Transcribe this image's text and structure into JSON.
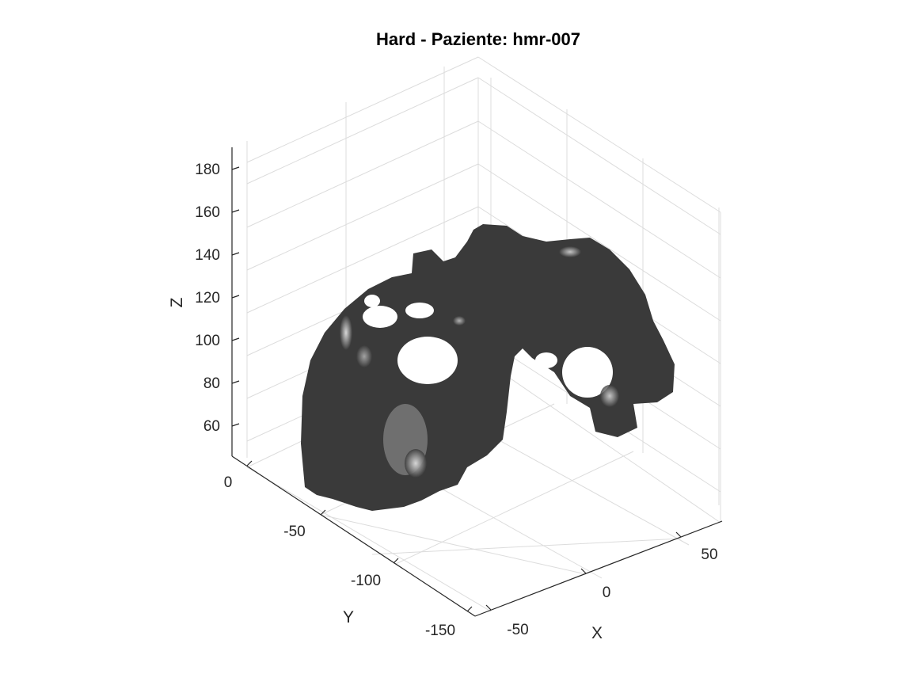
{
  "chart_data": {
    "type": "isosurface-3d",
    "title": "Hard - Paziente: hmr-007",
    "xlabel": "X",
    "ylabel": "Y",
    "zlabel": "Z",
    "x_ticks": [
      "-50",
      "0",
      "50"
    ],
    "y_ticks": [
      "0",
      "-50",
      "-100",
      "-150"
    ],
    "z_ticks": [
      "60",
      "80",
      "100",
      "120",
      "140",
      "160",
      "180"
    ],
    "grid": true,
    "surface_color": "#3a3a3a",
    "highlight_color": "#cfcfcf"
  }
}
